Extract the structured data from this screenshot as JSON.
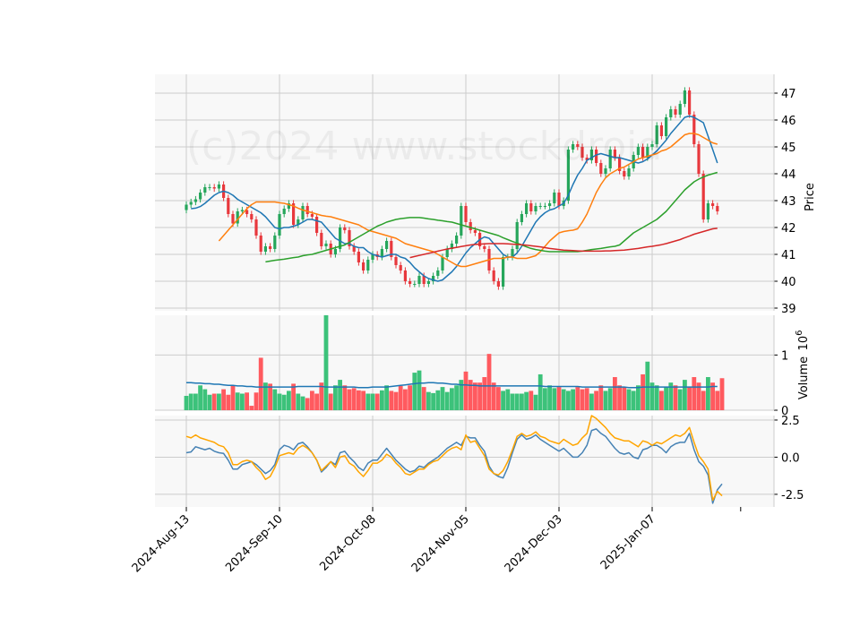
{
  "watermark": "(c)2024 www.stockdroid",
  "colors": {
    "up": "#26a65b",
    "down": "#e8383d",
    "up_volume": "#3cc27a",
    "down_volume": "#ff5a5f",
    "ma10": "#1f77b4",
    "ma20": "#ff7f0e",
    "ma50": "#2ca02c",
    "ma200": "#d62728",
    "volume_avg": "#1f77b4",
    "osc_fast": "#4682b4",
    "osc_slow": "#ffa500",
    "panel_bg": "#f8f8f8",
    "grid": "#cccccc"
  },
  "chart_data": [
    {
      "type": "candlestick",
      "panel": "price",
      "ylabel": "Price",
      "ylim": [
        38.9,
        47.7
      ],
      "yticks": [
        39,
        40,
        41,
        42,
        43,
        44,
        45,
        46,
        47
      ],
      "grid": true,
      "x_tick_labels": [
        "2024-Aug-13",
        "2024-Sep-10",
        "2024-Oct-08",
        "2024-Nov-05",
        "2024-Dec-03",
        "2025-Jan-07"
      ],
      "x_tick_index": [
        0,
        20,
        40,
        60,
        80,
        100
      ],
      "close": [
        42.85,
        42.95,
        43.05,
        43.3,
        43.5,
        43.5,
        43.45,
        43.6,
        43.1,
        42.5,
        42.15,
        42.6,
        42.65,
        42.5,
        42.3,
        41.7,
        41.1,
        41.3,
        41.2,
        41.7,
        42.5,
        42.7,
        42.9,
        42.1,
        42.3,
        42.8,
        42.5,
        42.4,
        41.8,
        41.3,
        41.4,
        41.0,
        41.2,
        42.0,
        41.9,
        41.3,
        41.1,
        40.7,
        40.4,
        40.8,
        41.0,
        40.9,
        41.2,
        41.5,
        40.9,
        40.6,
        40.4,
        40.0,
        39.9,
        39.9,
        40.2,
        39.9,
        40.0,
        40.2,
        40.4,
        40.9,
        41.2,
        41.4,
        41.7,
        42.8,
        42.2,
        41.9,
        41.8,
        41.3,
        41.2,
        40.4,
        40.0,
        39.8,
        40.9,
        40.9,
        41.2,
        42.2,
        42.5,
        42.9,
        42.6,
        42.8,
        42.8,
        42.8,
        42.9,
        43.3,
        42.8,
        43.0,
        44.9,
        45.1,
        45.0,
        44.6,
        44.5,
        44.9,
        44.4,
        44.0,
        44.2,
        44.9,
        44.6,
        44.1,
        43.9,
        44.2,
        44.7,
        45.0,
        44.6,
        45.0,
        45.1,
        45.8,
        45.4,
        46.1,
        46.4,
        46.2,
        46.6,
        47.1,
        46.2,
        45.1,
        44.0,
        42.3,
        42.9,
        42.8,
        42.6
      ],
      "series": [
        {
          "name": "MA10",
          "values": [
            42.7,
            42.72,
            42.78,
            42.9,
            43.05,
            43.2,
            43.3,
            43.35,
            43.3,
            43.2,
            43.05,
            42.95,
            42.85,
            42.75,
            42.65,
            42.55,
            42.4,
            42.2,
            42.0,
            41.95,
            42.0,
            42.0,
            42.05,
            42.1,
            42.2,
            42.3,
            42.3,
            42.25,
            42.2,
            42.0,
            41.8,
            41.6,
            41.5,
            41.4,
            41.4,
            41.3,
            41.25,
            41.25,
            41.1,
            41.0,
            40.95,
            40.9,
            40.95,
            41.0,
            41.0,
            40.9,
            40.85,
            40.7,
            40.5,
            40.35,
            40.2,
            40.1,
            40.05,
            40.0,
            40.05,
            40.2,
            40.35,
            40.55,
            40.8,
            41.05,
            41.25,
            41.4,
            41.55,
            41.65,
            41.6,
            41.4,
            41.2,
            41.0,
            40.9,
            40.9,
            41.05,
            41.3,
            41.6,
            41.9,
            42.2,
            42.4,
            42.55,
            42.65,
            42.7,
            42.8,
            42.9,
            43.2,
            43.6,
            43.95,
            44.2,
            44.5,
            44.6,
            44.7,
            44.75,
            44.7,
            44.65,
            44.6,
            44.6,
            44.55,
            44.5,
            44.45,
            44.4,
            44.45,
            44.55,
            44.7,
            44.85,
            45.05,
            45.25,
            45.5,
            45.7,
            45.9,
            46.1,
            46.15,
            46.1,
            46.0,
            45.9,
            45.4,
            44.9,
            44.4
          ]
        },
        {
          "name": "MA20",
          "values": [
            41.5,
            41.7,
            41.9,
            42.1,
            42.3,
            42.5,
            42.7,
            42.85,
            42.95,
            42.95,
            42.95,
            42.95,
            42.95,
            42.92,
            42.9,
            42.85,
            42.8,
            42.72,
            42.65,
            42.6,
            42.55,
            42.5,
            42.45,
            42.42,
            42.4,
            42.35,
            42.3,
            42.25,
            42.2,
            42.15,
            42.1,
            42.0,
            41.9,
            41.85,
            41.8,
            41.75,
            41.7,
            41.65,
            41.6,
            41.5,
            41.4,
            41.35,
            41.3,
            41.25,
            41.2,
            41.15,
            41.1,
            41.0,
            40.9,
            40.8,
            40.7,
            40.6,
            40.55,
            40.55,
            40.6,
            40.65,
            40.7,
            40.75,
            40.8,
            40.85,
            40.85,
            40.85,
            40.9,
            40.9,
            40.85,
            40.85,
            40.85,
            40.9,
            40.95,
            41.1,
            41.3,
            41.5,
            41.65,
            41.8,
            41.85,
            41.88,
            41.9,
            41.95,
            42.2,
            42.5,
            42.9,
            43.3,
            43.6,
            43.85,
            44.0,
            44.1,
            44.2,
            44.25,
            44.35,
            44.45,
            44.55,
            44.6,
            44.65,
            44.7,
            44.75,
            44.85,
            44.9,
            45.0,
            45.15,
            45.3,
            45.45,
            45.5,
            45.5,
            45.45,
            45.35,
            45.25,
            45.15,
            45.1
          ]
        },
        {
          "name": "MA50",
          "values": [
            40.72,
            40.75,
            40.78,
            40.8,
            40.82,
            40.85,
            40.88,
            40.9,
            40.95,
            40.98,
            41.0,
            41.05,
            41.1,
            41.15,
            41.2,
            41.25,
            41.3,
            41.35,
            41.45,
            41.55,
            41.65,
            41.75,
            41.85,
            41.95,
            42.05,
            42.12,
            42.2,
            42.25,
            42.3,
            42.33,
            42.35,
            42.37,
            42.37,
            42.37,
            42.35,
            42.32,
            42.3,
            42.27,
            42.25,
            42.22,
            42.2,
            42.15,
            42.1,
            42.05,
            42.0,
            41.95,
            41.9,
            41.85,
            41.8,
            41.75,
            41.7,
            41.62,
            41.55,
            41.48,
            41.42,
            41.35,
            41.28,
            41.22,
            41.18,
            41.15,
            41.12,
            41.1,
            41.1,
            41.1,
            41.1,
            41.1,
            41.1,
            41.1,
            41.12,
            41.15,
            41.18,
            41.2,
            41.22,
            41.25,
            41.28,
            41.3,
            41.35,
            41.5,
            41.65,
            41.8,
            41.9,
            42.0,
            42.1,
            42.2,
            42.3,
            42.45,
            42.6,
            42.8,
            43.0,
            43.2,
            43.4,
            43.55,
            43.7,
            43.8,
            43.88,
            43.95,
            44.0,
            44.05
          ]
        },
        {
          "name": "MA200",
          "values": [
            40.88,
            40.92,
            40.96,
            41.0,
            41.04,
            41.08,
            41.12,
            41.16,
            41.2,
            41.23,
            41.26,
            41.29,
            41.32,
            41.35,
            41.37,
            41.38,
            41.39,
            41.4,
            41.4,
            41.4,
            41.4,
            41.39,
            41.38,
            41.37,
            41.36,
            41.34,
            41.32,
            41.3,
            41.28,
            41.25,
            41.22,
            41.2,
            41.18,
            41.16,
            41.15,
            41.14,
            41.13,
            41.12,
            41.12,
            41.12,
            41.12,
            41.12,
            41.13,
            41.13,
            41.14,
            41.15,
            41.16,
            41.18,
            41.2,
            41.22,
            41.25,
            41.28,
            41.3,
            41.33,
            41.36,
            41.4,
            41.45,
            41.5,
            41.55,
            41.62,
            41.68,
            41.75,
            41.8,
            41.85,
            41.9,
            41.95,
            41.97
          ]
        }
      ]
    },
    {
      "type": "bar",
      "panel": "volume",
      "ylabel": "Volume",
      "unit_label": "10^6",
      "ylim": [
        0,
        1.72
      ],
      "yticks": [
        0,
        1
      ],
      "grid": true,
      "values": [
        0.26,
        0.3,
        0.3,
        0.45,
        0.38,
        0.28,
        0.3,
        0.3,
        0.38,
        0.28,
        0.45,
        0.32,
        0.3,
        0.32,
        0.08,
        0.32,
        0.95,
        0.5,
        0.48,
        0.38,
        0.3,
        0.28,
        0.35,
        0.48,
        0.3,
        0.25,
        0.22,
        0.35,
        0.3,
        0.5,
        1.72,
        0.3,
        0.45,
        0.55,
        0.45,
        0.38,
        0.4,
        0.36,
        0.35,
        0.3,
        0.3,
        0.3,
        0.36,
        0.45,
        0.35,
        0.33,
        0.44,
        0.38,
        0.45,
        0.68,
        0.72,
        0.42,
        0.33,
        0.31,
        0.36,
        0.42,
        0.33,
        0.4,
        0.45,
        0.55,
        0.7,
        0.55,
        0.5,
        0.5,
        0.6,
        1.02,
        0.5,
        0.42,
        0.35,
        0.38,
        0.3,
        0.3,
        0.3,
        0.33,
        0.35,
        0.28,
        0.65,
        0.4,
        0.45,
        0.4,
        0.42,
        0.38,
        0.35,
        0.38,
        0.42,
        0.38,
        0.4,
        0.3,
        0.35,
        0.45,
        0.35,
        0.4,
        0.6,
        0.45,
        0.42,
        0.38,
        0.35,
        0.45,
        0.65,
        0.88,
        0.5,
        0.45,
        0.35,
        0.42,
        0.5,
        0.45,
        0.38,
        0.55,
        0.42,
        0.6,
        0.5,
        0.35,
        0.6,
        0.5,
        0.35,
        0.58
      ],
      "avg": [
        0.5,
        0.5,
        0.49,
        0.49,
        0.48,
        0.48,
        0.47,
        0.47,
        0.46,
        0.45,
        0.45,
        0.44,
        0.44,
        0.43,
        0.43,
        0.42,
        0.42,
        0.42,
        0.42,
        0.42,
        0.42,
        0.42,
        0.42,
        0.42,
        0.43,
        0.43,
        0.43,
        0.43,
        0.43,
        0.43,
        0.42,
        0.42,
        0.42,
        0.42,
        0.42,
        0.42,
        0.42,
        0.41,
        0.41,
        0.41,
        0.42,
        0.42,
        0.42,
        0.42,
        0.43,
        0.44,
        0.45,
        0.46,
        0.47,
        0.48,
        0.49,
        0.49,
        0.5,
        0.5,
        0.49,
        0.49,
        0.48,
        0.47,
        0.47,
        0.46,
        0.46,
        0.45,
        0.45,
        0.44,
        0.44,
        0.44,
        0.44,
        0.44,
        0.44,
        0.44,
        0.44,
        0.44,
        0.44,
        0.44,
        0.44,
        0.44,
        0.44,
        0.43,
        0.43,
        0.43,
        0.43,
        0.43,
        0.43,
        0.43,
        0.43,
        0.42,
        0.42,
        0.42,
        0.42,
        0.42,
        0.42,
        0.42,
        0.42,
        0.42,
        0.42,
        0.41,
        0.41,
        0.41,
        0.42,
        0.42,
        0.42,
        0.42,
        0.42,
        0.42,
        0.42,
        0.42,
        0.42,
        0.42,
        0.42,
        0.42,
        0.42,
        0.42,
        0.42,
        0.43,
        0.43
      ]
    },
    {
      "type": "line",
      "panel": "oscillator",
      "ylim": [
        -3.35,
        2.8
      ],
      "yticks": [
        -2.5,
        0.0,
        2.5
      ],
      "grid": true,
      "series": [
        {
          "values": [
            0.3,
            0.35,
            0.7,
            0.6,
            0.5,
            0.6,
            0.4,
            0.3,
            0.25,
            -0.2,
            -0.8,
            -0.8,
            -0.5,
            -0.4,
            -0.3,
            -0.5,
            -0.8,
            -1.1,
            -0.9,
            -0.5,
            0.5,
            0.8,
            0.7,
            0.5,
            0.9,
            1.0,
            0.7,
            0.3,
            -0.2,
            -1.0,
            -0.7,
            -0.3,
            -0.5,
            0.3,
            0.4,
            0.0,
            -0.3,
            -0.7,
            -0.9,
            -0.4,
            -0.2,
            -0.2,
            0.2,
            0.6,
            0.2,
            -0.2,
            -0.5,
            -0.8,
            -1.0,
            -0.9,
            -0.6,
            -0.7,
            -0.4,
            -0.2,
            0.0,
            0.3,
            0.6,
            0.8,
            1.0,
            0.8,
            1.4,
            1.3,
            1.3,
            0.8,
            0.4,
            -0.6,
            -1.1,
            -1.3,
            -1.4,
            -0.7,
            0.3,
            1.2,
            1.5,
            1.2,
            1.3,
            1.5,
            1.2,
            1.0,
            0.8,
            0.6,
            0.4,
            0.6,
            0.3,
            0.0,
            0.0,
            0.3,
            0.8,
            1.8,
            1.9,
            1.6,
            1.4,
            1.0,
            0.6,
            0.3,
            0.2,
            0.3,
            0.0,
            -0.1,
            0.5,
            0.6,
            0.8,
            0.8,
            0.6,
            0.3,
            0.7,
            0.9,
            1.0,
            1.0,
            1.6,
            0.5,
            -0.3,
            -0.6,
            -1.2,
            -3.1,
            -2.2,
            -1.8
          ]
        },
        {
          "values": [
            1.4,
            1.3,
            1.5,
            1.3,
            1.2,
            1.1,
            1.0,
            0.8,
            0.7,
            0.3,
            -0.5,
            -0.5,
            -0.3,
            -0.2,
            -0.3,
            -0.7,
            -1.0,
            -1.5,
            -1.3,
            -0.7,
            0.1,
            0.2,
            0.3,
            0.2,
            0.6,
            0.8,
            0.6,
            0.3,
            -0.2,
            -0.9,
            -0.6,
            -0.3,
            -0.7,
            0.0,
            0.1,
            -0.4,
            -0.6,
            -1.0,
            -1.3,
            -0.9,
            -0.4,
            -0.4,
            -0.2,
            0.2,
            0.0,
            -0.4,
            -0.7,
            -1.1,
            -1.2,
            -1.0,
            -0.8,
            -0.8,
            -0.5,
            -0.3,
            -0.2,
            0.1,
            0.4,
            0.6,
            0.7,
            0.5,
            1.5,
            1.0,
            1.1,
            0.6,
            0.1,
            -0.8,
            -1.1,
            -1.2,
            -0.9,
            -0.3,
            0.5,
            1.4,
            1.6,
            1.4,
            1.5,
            1.7,
            1.4,
            1.3,
            1.1,
            1.0,
            0.9,
            1.2,
            1.0,
            0.8,
            0.9,
            1.3,
            1.6,
            2.8,
            2.6,
            2.3,
            2.0,
            1.6,
            1.3,
            1.2,
            1.1,
            1.1,
            0.9,
            0.7,
            1.1,
            1.0,
            0.8,
            1.0,
            0.9,
            1.1,
            1.3,
            1.5,
            1.4,
            1.6,
            2.0,
            1.0,
            0.1,
            -0.3,
            -0.8,
            -2.9,
            -2.3,
            -2.6
          ]
        }
      ]
    }
  ]
}
